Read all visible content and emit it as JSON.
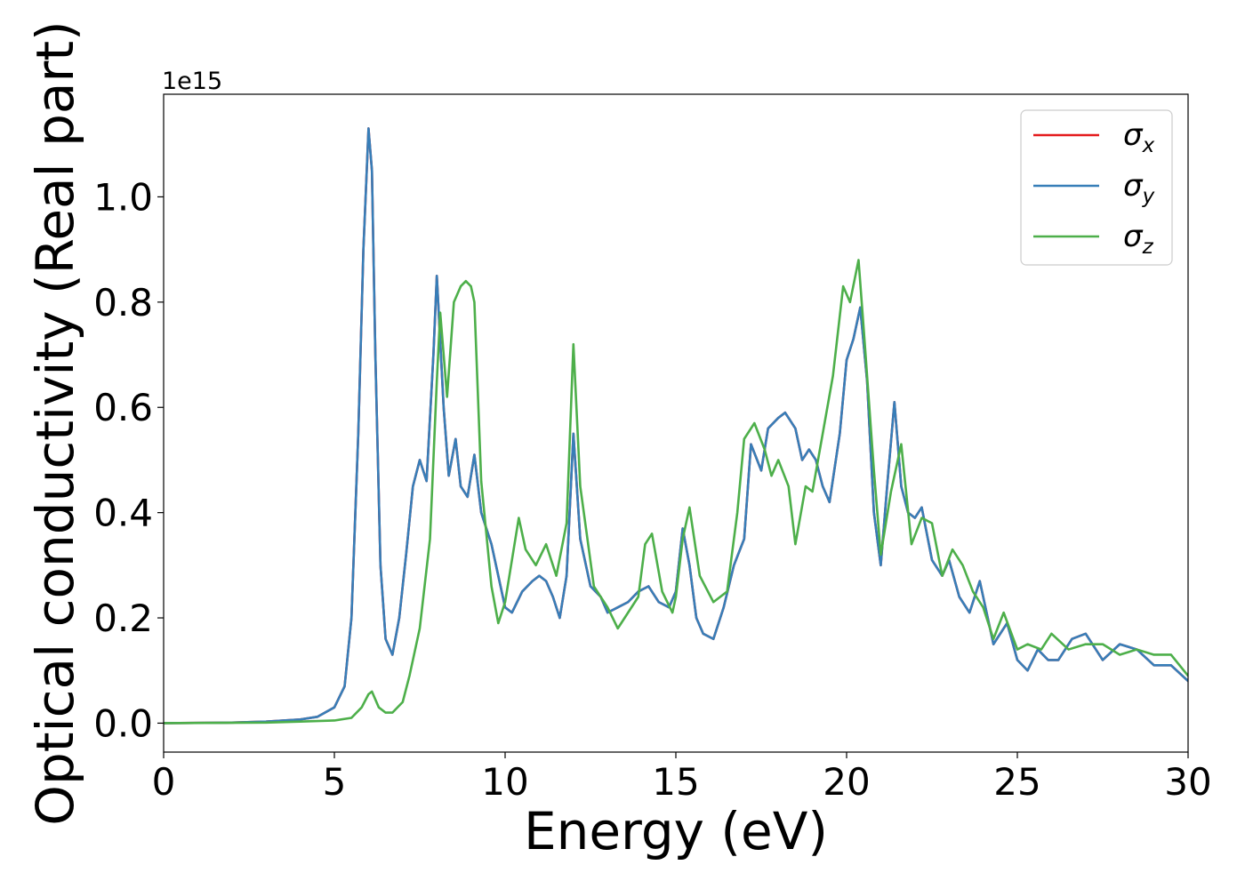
{
  "chart_data": {
    "type": "line",
    "xlabel": "Energy (eV)",
    "ylabel": "Optical conductivity (Real part)",
    "offset_text": "1e15",
    "xlim": [
      0,
      30
    ],
    "ylim": [
      -0.055,
      1.195
    ],
    "x_ticks": [
      0,
      5,
      10,
      15,
      20,
      25,
      30
    ],
    "x_tick_labels": [
      "0",
      "5",
      "10",
      "15",
      "20",
      "25",
      "30"
    ],
    "y_ticks": [
      0.0,
      0.2,
      0.4,
      0.6,
      0.8,
      1.0
    ],
    "y_tick_labels": [
      "0.0",
      "0.2",
      "0.4",
      "0.6",
      "0.8",
      "1.0"
    ],
    "grid": false,
    "legend_position": "top-right",
    "legend": [
      {
        "symbol": "σ",
        "sub": "x",
        "color": "#e41a1c"
      },
      {
        "symbol": "σ",
        "sub": "y",
        "color": "#377eb8"
      },
      {
        "symbol": "σ",
        "sub": "z",
        "color": "#4daf4a"
      }
    ],
    "series": [
      {
        "name": "σx",
        "color": "#e41a1c",
        "x": [
          0,
          2,
          3,
          4,
          4.5,
          5,
          5.3,
          5.5,
          5.7,
          5.85,
          6.0,
          6.1,
          6.2,
          6.35,
          6.5,
          6.7,
          6.9,
          7.1,
          7.3,
          7.5,
          7.7,
          7.9,
          8.0,
          8.2,
          8.35,
          8.55,
          8.7,
          8.9,
          9.1,
          9.3,
          9.6,
          10.0,
          10.2,
          10.5,
          10.8,
          11.0,
          11.2,
          11.4,
          11.6,
          11.8,
          12.0,
          12.2,
          12.5,
          12.8,
          13.0,
          13.3,
          13.6,
          13.9,
          14.2,
          14.5,
          14.8,
          15.0,
          15.2,
          15.4,
          15.6,
          15.8,
          16.1,
          16.4,
          16.7,
          17.0,
          17.2,
          17.5,
          17.7,
          18.0,
          18.2,
          18.5,
          18.7,
          18.9,
          19.1,
          19.3,
          19.5,
          19.8,
          20.0,
          20.2,
          20.4,
          20.6,
          20.8,
          21.0,
          21.2,
          21.4,
          21.6,
          21.8,
          22.0,
          22.2,
          22.5,
          22.8,
          23.0,
          23.3,
          23.6,
          23.9,
          24.3,
          24.7,
          25.0,
          25.3,
          25.6,
          25.9,
          26.2,
          26.6,
          27.0,
          27.5,
          28.0,
          28.5,
          29.0,
          29.5,
          30.0
        ],
        "y": [
          0.0,
          0.001,
          0.003,
          0.007,
          0.012,
          0.03,
          0.07,
          0.2,
          0.55,
          0.9,
          1.13,
          1.05,
          0.7,
          0.3,
          0.16,
          0.13,
          0.2,
          0.32,
          0.45,
          0.5,
          0.46,
          0.7,
          0.85,
          0.6,
          0.47,
          0.54,
          0.45,
          0.43,
          0.51,
          0.4,
          0.34,
          0.22,
          0.21,
          0.25,
          0.27,
          0.28,
          0.27,
          0.24,
          0.2,
          0.28,
          0.55,
          0.35,
          0.26,
          0.24,
          0.21,
          0.22,
          0.23,
          0.25,
          0.26,
          0.23,
          0.22,
          0.25,
          0.37,
          0.3,
          0.2,
          0.17,
          0.16,
          0.22,
          0.3,
          0.35,
          0.53,
          0.48,
          0.56,
          0.58,
          0.59,
          0.56,
          0.5,
          0.52,
          0.5,
          0.45,
          0.42,
          0.55,
          0.69,
          0.73,
          0.79,
          0.65,
          0.4,
          0.3,
          0.46,
          0.61,
          0.45,
          0.4,
          0.39,
          0.41,
          0.31,
          0.28,
          0.31,
          0.24,
          0.21,
          0.27,
          0.15,
          0.19,
          0.12,
          0.1,
          0.14,
          0.12,
          0.12,
          0.16,
          0.17,
          0.12,
          0.15,
          0.14,
          0.11,
          0.11,
          0.08
        ]
      },
      {
        "name": "σy",
        "color": "#377eb8",
        "x": [
          0,
          2,
          3,
          4,
          4.5,
          5,
          5.3,
          5.5,
          5.7,
          5.85,
          6.0,
          6.1,
          6.2,
          6.35,
          6.5,
          6.7,
          6.9,
          7.1,
          7.3,
          7.5,
          7.7,
          7.9,
          8.0,
          8.2,
          8.35,
          8.55,
          8.7,
          8.9,
          9.1,
          9.3,
          9.6,
          10.0,
          10.2,
          10.5,
          10.8,
          11.0,
          11.2,
          11.4,
          11.6,
          11.8,
          12.0,
          12.2,
          12.5,
          12.8,
          13.0,
          13.3,
          13.6,
          13.9,
          14.2,
          14.5,
          14.8,
          15.0,
          15.2,
          15.4,
          15.6,
          15.8,
          16.1,
          16.4,
          16.7,
          17.0,
          17.2,
          17.5,
          17.7,
          18.0,
          18.2,
          18.5,
          18.7,
          18.9,
          19.1,
          19.3,
          19.5,
          19.8,
          20.0,
          20.2,
          20.4,
          20.6,
          20.8,
          21.0,
          21.2,
          21.4,
          21.6,
          21.8,
          22.0,
          22.2,
          22.5,
          22.8,
          23.0,
          23.3,
          23.6,
          23.9,
          24.3,
          24.7,
          25.0,
          25.3,
          25.6,
          25.9,
          26.2,
          26.6,
          27.0,
          27.5,
          28.0,
          28.5,
          29.0,
          29.5,
          30.0
        ],
        "y": [
          0.0,
          0.001,
          0.003,
          0.007,
          0.012,
          0.03,
          0.07,
          0.2,
          0.55,
          0.9,
          1.13,
          1.05,
          0.7,
          0.3,
          0.16,
          0.13,
          0.2,
          0.32,
          0.45,
          0.5,
          0.46,
          0.7,
          0.85,
          0.6,
          0.47,
          0.54,
          0.45,
          0.43,
          0.51,
          0.4,
          0.34,
          0.22,
          0.21,
          0.25,
          0.27,
          0.28,
          0.27,
          0.24,
          0.2,
          0.28,
          0.55,
          0.35,
          0.26,
          0.24,
          0.21,
          0.22,
          0.23,
          0.25,
          0.26,
          0.23,
          0.22,
          0.25,
          0.37,
          0.3,
          0.2,
          0.17,
          0.16,
          0.22,
          0.3,
          0.35,
          0.53,
          0.48,
          0.56,
          0.58,
          0.59,
          0.56,
          0.5,
          0.52,
          0.5,
          0.45,
          0.42,
          0.55,
          0.69,
          0.73,
          0.79,
          0.65,
          0.4,
          0.3,
          0.46,
          0.61,
          0.45,
          0.4,
          0.39,
          0.41,
          0.31,
          0.28,
          0.31,
          0.24,
          0.21,
          0.27,
          0.15,
          0.19,
          0.12,
          0.1,
          0.14,
          0.12,
          0.12,
          0.16,
          0.17,
          0.12,
          0.15,
          0.14,
          0.11,
          0.11,
          0.08
        ]
      },
      {
        "name": "σz",
        "color": "#4daf4a",
        "x": [
          0,
          3,
          4,
          5,
          5.5,
          5.8,
          6.0,
          6.1,
          6.3,
          6.5,
          6.7,
          7.0,
          7.2,
          7.5,
          7.8,
          8.0,
          8.1,
          8.3,
          8.5,
          8.7,
          8.85,
          9.0,
          9.1,
          9.3,
          9.6,
          9.8,
          10.0,
          10.2,
          10.4,
          10.6,
          10.9,
          11.2,
          11.5,
          11.8,
          12.0,
          12.2,
          12.6,
          13.0,
          13.3,
          13.6,
          13.9,
          14.1,
          14.3,
          14.6,
          14.9,
          15.0,
          15.2,
          15.4,
          15.7,
          16.1,
          16.5,
          16.8,
          17.0,
          17.3,
          17.6,
          17.8,
          18.0,
          18.3,
          18.5,
          18.8,
          19.0,
          19.3,
          19.6,
          19.9,
          20.1,
          20.35,
          20.5,
          20.8,
          21.0,
          21.3,
          21.6,
          21.9,
          22.2,
          22.5,
          22.8,
          23.1,
          23.4,
          23.7,
          24.0,
          24.3,
          24.6,
          25.0,
          25.3,
          25.7,
          26.0,
          26.5,
          27.0,
          27.5,
          28.0,
          28.5,
          29.0,
          29.5,
          30.0
        ],
        "y": [
          0.0,
          0.001,
          0.003,
          0.005,
          0.01,
          0.03,
          0.055,
          0.06,
          0.03,
          0.02,
          0.02,
          0.04,
          0.09,
          0.18,
          0.35,
          0.65,
          0.78,
          0.62,
          0.8,
          0.83,
          0.84,
          0.83,
          0.8,
          0.46,
          0.26,
          0.19,
          0.23,
          0.31,
          0.39,
          0.33,
          0.3,
          0.34,
          0.28,
          0.38,
          0.72,
          0.45,
          0.26,
          0.22,
          0.18,
          0.21,
          0.24,
          0.34,
          0.36,
          0.25,
          0.21,
          0.24,
          0.35,
          0.41,
          0.28,
          0.23,
          0.25,
          0.4,
          0.54,
          0.57,
          0.52,
          0.47,
          0.5,
          0.45,
          0.34,
          0.45,
          0.44,
          0.55,
          0.66,
          0.83,
          0.8,
          0.88,
          0.75,
          0.48,
          0.32,
          0.44,
          0.53,
          0.34,
          0.39,
          0.38,
          0.28,
          0.33,
          0.3,
          0.25,
          0.22,
          0.16,
          0.21,
          0.14,
          0.15,
          0.14,
          0.17,
          0.14,
          0.15,
          0.15,
          0.13,
          0.14,
          0.13,
          0.13,
          0.09
        ]
      }
    ]
  }
}
